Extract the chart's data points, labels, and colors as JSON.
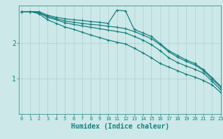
{
  "xlabel": "Humidex (Indice chaleur)",
  "background_color": "#cce8e8",
  "line_color": "#1a8080",
  "grid_color": "#b0d0d0",
  "x_values": [
    0,
    1,
    2,
    3,
    4,
    5,
    6,
    7,
    8,
    9,
    10,
    11,
    12,
    13,
    14,
    15,
    16,
    17,
    18,
    19,
    20,
    21,
    22,
    23
  ],
  "series1": [
    2.88,
    2.88,
    2.88,
    2.78,
    2.72,
    2.68,
    2.65,
    2.63,
    2.6,
    2.58,
    2.55,
    2.92,
    2.9,
    2.38,
    2.28,
    2.18,
    1.98,
    1.78,
    1.65,
    1.52,
    1.42,
    1.25,
    1.02,
    0.78
  ],
  "series2": [
    2.88,
    2.88,
    2.85,
    2.75,
    2.68,
    2.62,
    2.58,
    2.55,
    2.52,
    2.5,
    2.47,
    2.44,
    2.4,
    2.32,
    2.22,
    2.12,
    1.95,
    1.75,
    1.6,
    1.48,
    1.38,
    1.22,
    0.98,
    0.75
  ],
  "series3": [
    2.88,
    2.88,
    2.85,
    2.72,
    2.65,
    2.57,
    2.52,
    2.48,
    2.44,
    2.4,
    2.36,
    2.32,
    2.28,
    2.18,
    2.08,
    1.95,
    1.78,
    1.58,
    1.45,
    1.35,
    1.26,
    1.15,
    0.92,
    0.68
  ],
  "series4": [
    2.88,
    2.88,
    2.82,
    2.65,
    2.55,
    2.45,
    2.38,
    2.3,
    2.22,
    2.15,
    2.08,
    2.02,
    1.97,
    1.85,
    1.72,
    1.58,
    1.42,
    1.32,
    1.22,
    1.12,
    1.04,
    0.94,
    0.82,
    0.6
  ],
  "ytick_positions": [
    1,
    2
  ],
  "ytick_labels": [
    "1",
    "2"
  ],
  "ylim": [
    0,
    3.05
  ],
  "xlim": [
    -0.3,
    23
  ]
}
